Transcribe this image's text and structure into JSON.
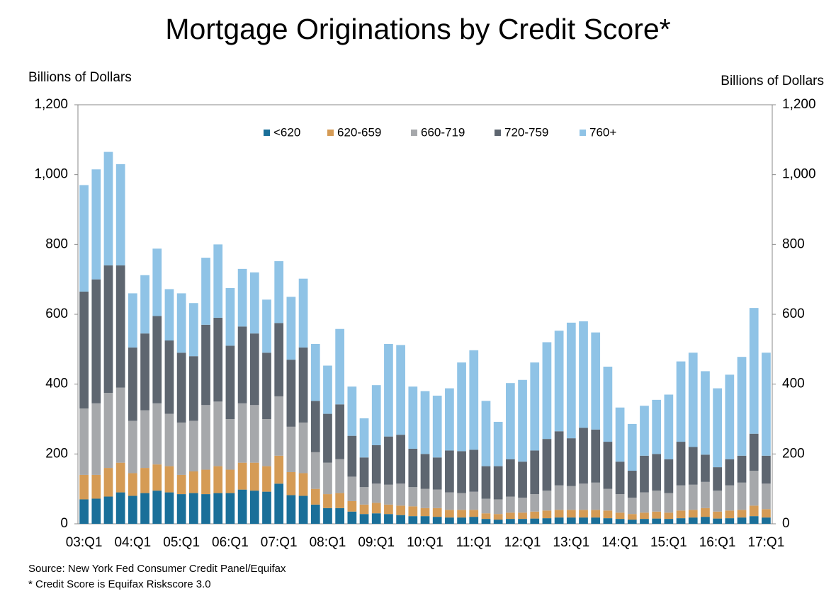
{
  "chart_data": {
    "type": "stacked_bar",
    "title": "Mortgage Originations by Credit Score*",
    "y_label": "Billions of Dollars",
    "y2_label": "Billions of Dollars",
    "source": "Source: New York Fed Consumer Credit Panel/Equifax",
    "note": "* Credit Score is Equifax Riskscore 3.0",
    "categories": [
      "03:Q1",
      null,
      null,
      null,
      "04:Q1",
      null,
      null,
      null,
      "05:Q1",
      null,
      null,
      null,
      "06:Q1",
      null,
      null,
      null,
      "07:Q1",
      null,
      null,
      null,
      "08:Q1",
      null,
      null,
      null,
      "09:Q1",
      null,
      null,
      null,
      "10:Q1",
      null,
      null,
      null,
      "11:Q1",
      null,
      null,
      null,
      "12:Q1",
      null,
      null,
      null,
      "13:Q1",
      null,
      null,
      null,
      "14:Q1",
      null,
      null,
      null,
      "15:Q1",
      null,
      null,
      null,
      "16:Q1",
      null,
      null,
      null,
      "17:Q1"
    ],
    "series": [
      {
        "name": "<620",
        "color": "#1a6f99",
        "values": [
          70,
          72,
          78,
          90,
          80,
          88,
          95,
          90,
          85,
          88,
          85,
          88,
          88,
          98,
          95,
          92,
          115,
          82,
          80,
          55,
          45,
          45,
          35,
          28,
          30,
          28,
          25,
          22,
          22,
          20,
          18,
          18,
          20,
          14,
          12,
          14,
          14,
          15,
          16,
          18,
          18,
          18,
          18,
          16,
          14,
          12,
          14,
          15,
          14,
          16,
          18,
          20,
          15,
          16,
          18,
          22,
          18
        ]
      },
      {
        "name": "620-659",
        "color": "#d59b55",
        "values": [
          70,
          68,
          82,
          85,
          65,
          72,
          75,
          75,
          55,
          62,
          70,
          77,
          67,
          77,
          80,
          73,
          80,
          66,
          65,
          45,
          40,
          43,
          30,
          27,
          30,
          27,
          27,
          28,
          23,
          25,
          22,
          22,
          20,
          16,
          16,
          18,
          18,
          20,
          22,
          22,
          22,
          22,
          22,
          22,
          18,
          16,
          18,
          20,
          18,
          22,
          22,
          25,
          20,
          22,
          22,
          30,
          24
        ]
      },
      {
        "name": "660-719",
        "color": "#a6a8ab",
        "values": [
          190,
          205,
          215,
          215,
          150,
          165,
          175,
          150,
          150,
          145,
          185,
          185,
          145,
          170,
          165,
          135,
          170,
          130,
          145,
          105,
          90,
          97,
          70,
          50,
          55,
          57,
          63,
          55,
          55,
          53,
          50,
          48,
          52,
          42,
          42,
          46,
          43,
          50,
          57,
          70,
          68,
          75,
          78,
          62,
          53,
          47,
          58,
          60,
          56,
          72,
          72,
          75,
          60,
          72,
          78,
          100,
          73
        ]
      },
      {
        "name": "720-759",
        "color": "#5e6670",
        "values": [
          335,
          355,
          365,
          350,
          210,
          220,
          250,
          210,
          200,
          185,
          230,
          240,
          210,
          220,
          205,
          190,
          210,
          192,
          215,
          147,
          140,
          157,
          117,
          85,
          110,
          138,
          140,
          110,
          100,
          92,
          120,
          120,
          120,
          93,
          95,
          107,
          103,
          125,
          148,
          155,
          137,
          160,
          152,
          135,
          93,
          77,
          105,
          105,
          97,
          125,
          108,
          78,
          67,
          75,
          77,
          106,
          80
        ]
      },
      {
        "name": "760+",
        "color": "#8fc3e6",
        "values": [
          305,
          315,
          325,
          290,
          155,
          167,
          193,
          147,
          170,
          152,
          192,
          210,
          165,
          165,
          175,
          152,
          177,
          180,
          197,
          163,
          138,
          216,
          141,
          112,
          172,
          265,
          257,
          178,
          180,
          177,
          178,
          254,
          285,
          187,
          127,
          218,
          234,
          252,
          277,
          288,
          331,
          305,
          278,
          215,
          155,
          134,
          143,
          155,
          185,
          230,
          270,
          239,
          226,
          242,
          283,
          360,
          295
        ]
      }
    ],
    "ylim": [
      0,
      1200
    ],
    "yticks": [
      0,
      200,
      400,
      600,
      800,
      {
        "value": 1000,
        "label": "1,000"
      },
      {
        "value": 1200,
        "label": "1,200"
      }
    ],
    "y2lim": [
      0,
      1200
    ],
    "y2ticks": [
      0,
      200,
      400,
      600,
      800,
      {
        "value": 1000,
        "label": "1,000"
      },
      {
        "value": 1200,
        "label": "1,200"
      }
    ],
    "legend": "top",
    "grid": false
  }
}
